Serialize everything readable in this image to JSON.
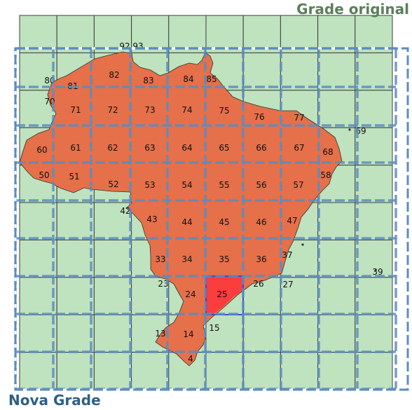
{
  "titles": {
    "original_grid": "Grade original",
    "new_grid": "Nova Grade"
  },
  "colors": {
    "cell_fill": "#bfe2bf",
    "cell_line": "#3e3e3e",
    "land_fill": "#e5704a",
    "highlight_fill": "#fb3d3d",
    "highlight_border": "#4646c8",
    "new_grid_line": "#5b8dbf"
  },
  "map": {
    "columns": 10,
    "rows": 10,
    "highlighted_cell": "25",
    "cell_labels": [
      "4",
      "13",
      "14",
      "15",
      "23",
      "24",
      "25",
      "26",
      "27",
      "33",
      "34",
      "35",
      "36",
      "37",
      "39",
      "42",
      "43",
      "44",
      "45",
      "46",
      "47",
      "50",
      "51",
      "52",
      "53",
      "54",
      "55",
      "56",
      "57",
      "58",
      "60",
      "61",
      "62",
      "63",
      "64",
      "65",
      "66",
      "67",
      "68",
      "69",
      "70",
      "71",
      "72",
      "73",
      "74",
      "75",
      "76",
      "77",
      "80",
      "81",
      "82",
      "83",
      "84",
      "85",
      "92",
      "93"
    ]
  }
}
